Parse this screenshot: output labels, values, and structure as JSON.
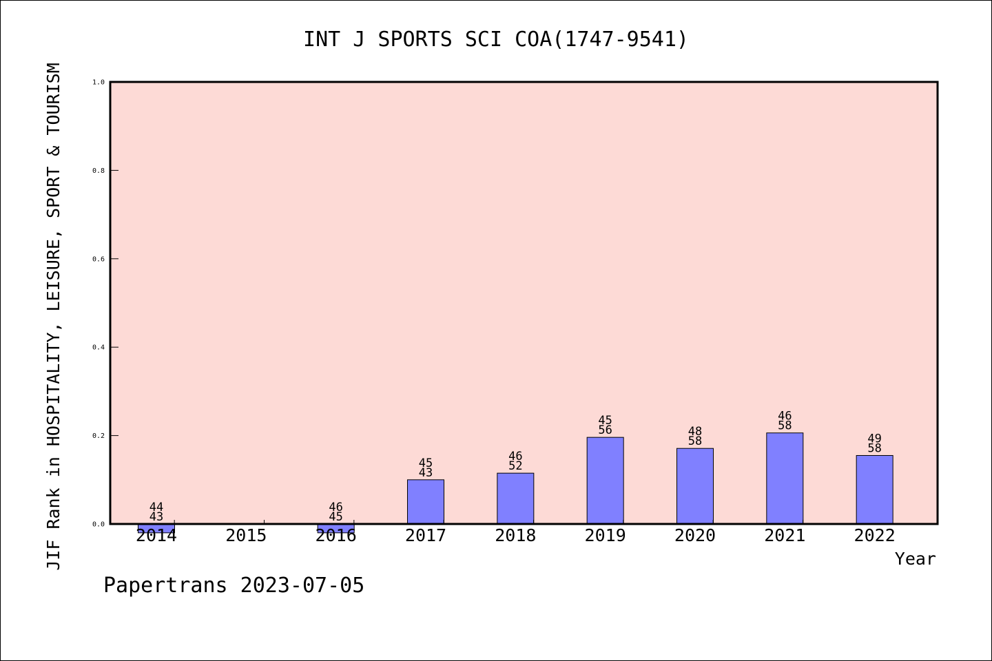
{
  "chart_data": {
    "type": "bar",
    "title": "INT J SPORTS SCI COA(1747-9541)",
    "xlabel": "Year",
    "ylabel": "JIF Rank in HOSPITALITY, LEISURE, SPORT & TOURISM",
    "categories": [
      "2014",
      "2015",
      "2016",
      "2017",
      "2018",
      "2019",
      "2020",
      "2021",
      "2022"
    ],
    "values": [
      -0.02,
      null,
      -0.02,
      0.1,
      0.115,
      0.196,
      0.171,
      0.206,
      0.155
    ],
    "rank_labels": [
      {
        "top": "44",
        "bottom": "43"
      },
      null,
      {
        "top": "46",
        "bottom": "45"
      },
      {
        "top": "45",
        "bottom": "43"
      },
      {
        "top": "46",
        "bottom": "52"
      },
      {
        "top": "45",
        "bottom": "56"
      },
      {
        "top": "48",
        "bottom": "58"
      },
      {
        "top": "46",
        "bottom": "58"
      },
      {
        "top": "49",
        "bottom": "58"
      }
    ],
    "ylim": [
      0.0,
      1.0
    ],
    "yticks": [
      "0.0",
      "0.2",
      "0.4",
      "0.6",
      "0.8",
      "1.0"
    ],
    "grid": false,
    "colors": {
      "plot_background": "#fddad6",
      "bar_fill": "#8080ff",
      "bar_stroke": "#000000"
    }
  },
  "watermark": "Papertrans 2023-07-05"
}
